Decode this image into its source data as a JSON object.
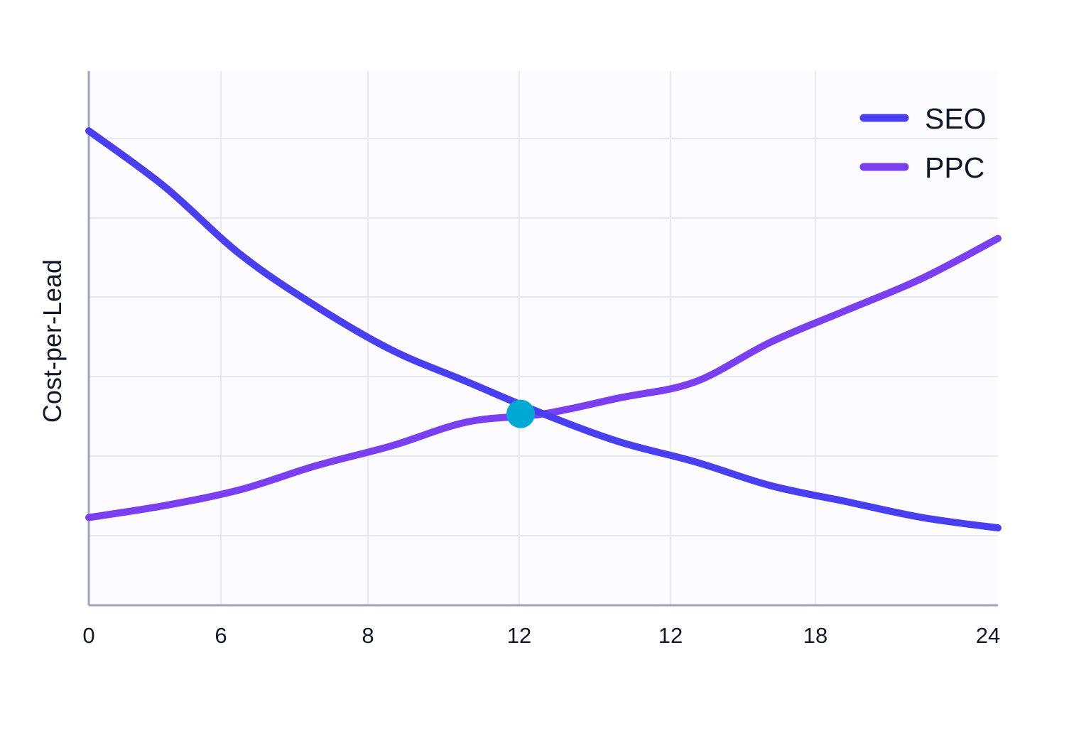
{
  "chart_data": {
    "type": "line",
    "title": "",
    "xlabel": "",
    "ylabel": "Cost-per-Lead",
    "x_tick_labels": [
      "0",
      "6",
      "8",
      "12",
      "12",
      "18",
      "24"
    ],
    "xlim": [
      0,
      6
    ],
    "ylim": [
      0,
      6.7
    ],
    "grid": true,
    "legend_position": "top-right",
    "series": [
      {
        "name": "SEO",
        "color": "#4a3ff0",
        "points": [
          [
            0,
            5.95
          ],
          [
            0.5,
            5.25
          ],
          [
            1,
            4.4
          ],
          [
            1.5,
            3.75
          ],
          [
            2,
            3.2
          ],
          [
            2.5,
            2.8
          ],
          [
            3,
            2.4
          ],
          [
            3.5,
            2.05
          ],
          [
            4,
            1.8
          ],
          [
            4.5,
            1.5
          ],
          [
            5,
            1.3
          ],
          [
            5.5,
            1.1
          ],
          [
            6,
            0.97
          ]
        ]
      },
      {
        "name": "PPC",
        "color": "#7a3ff0",
        "points": [
          [
            0,
            1.1
          ],
          [
            0.5,
            1.25
          ],
          [
            1,
            1.45
          ],
          [
            1.5,
            1.75
          ],
          [
            2,
            2.0
          ],
          [
            2.5,
            2.3
          ],
          [
            3,
            2.4
          ],
          [
            3.5,
            2.6
          ],
          [
            4,
            2.8
          ],
          [
            4.5,
            3.3
          ],
          [
            5,
            3.7
          ],
          [
            5.5,
            4.1
          ],
          [
            6,
            4.6
          ]
        ]
      }
    ],
    "annotations": [
      {
        "type": "intersection-marker",
        "x": 2.85,
        "y": 2.4,
        "color": "#00a9d4"
      }
    ]
  }
}
